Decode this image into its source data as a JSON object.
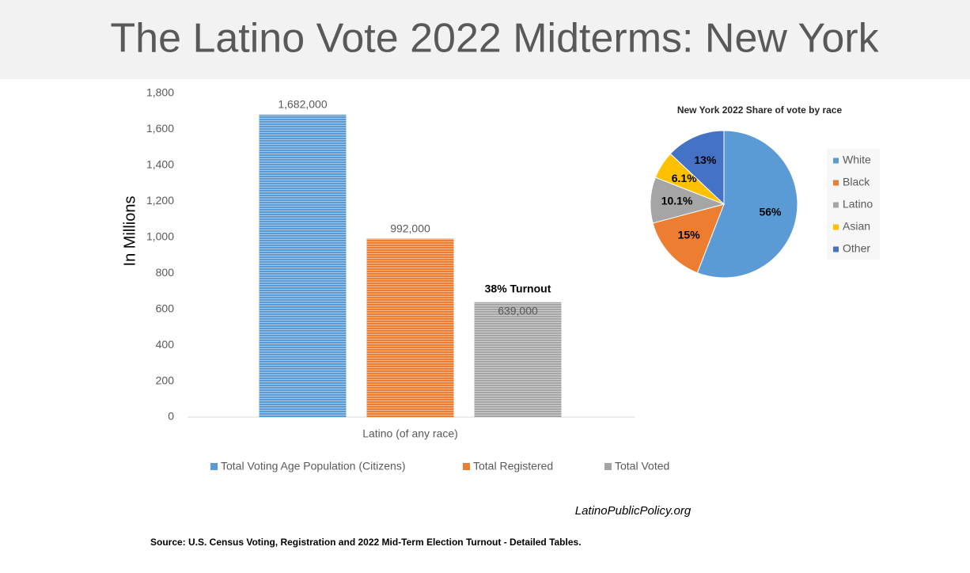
{
  "header": {
    "title": "The Latino Vote 2022 Midterms: New York"
  },
  "chart_data": [
    {
      "type": "bar",
      "y_label": "In Millions",
      "categories": [
        "Latino (of any race)"
      ],
      "series": [
        {
          "name": "Total Voting Age Population (Citizens)",
          "color": "#5b9bd5",
          "values": [
            1682
          ],
          "value_labels": [
            "1,682,000"
          ]
        },
        {
          "name": "Total Registered",
          "color": "#ed7d31",
          "values": [
            992
          ],
          "value_labels": [
            "992,000"
          ]
        },
        {
          "name": "Total Voted",
          "color": "#a5a5a5",
          "values": [
            639
          ],
          "value_labels": [
            "639,000"
          ]
        }
      ],
      "annotation": "38% Turnout",
      "ylim": [
        0,
        1800
      ],
      "yticks": [
        0,
        200,
        400,
        600,
        800,
        {
          "value": 1000,
          "label": "1,000"
        },
        {
          "value": 1200,
          "label": "1,200"
        },
        {
          "value": 1400,
          "label": "1,400"
        },
        {
          "value": 1600,
          "label": "1,600"
        },
        {
          "value": 1800,
          "label": "1,800"
        }
      ],
      "legend": "bottom"
    },
    {
      "type": "pie",
      "title": "New York 2022 Share of vote by race",
      "categories": [
        "White",
        "Black",
        "Latino",
        "Asian",
        "Other"
      ],
      "values": [
        56,
        15,
        10.1,
        6.1,
        13
      ],
      "value_labels": [
        "56%",
        "15%",
        "10.1%",
        "6.1%",
        "13%"
      ],
      "colors": [
        "#5b9bd5",
        "#ed7d31",
        "#a5a5a5",
        "#ffc000",
        "#4472c4"
      ],
      "legend": "right"
    }
  ],
  "footer": {
    "site": "LatinoPublicPolicy.org",
    "source": "Source: U.S. Census Voting, Registration and 2022 Mid-Term Election Turnout - Detailed Tables."
  }
}
